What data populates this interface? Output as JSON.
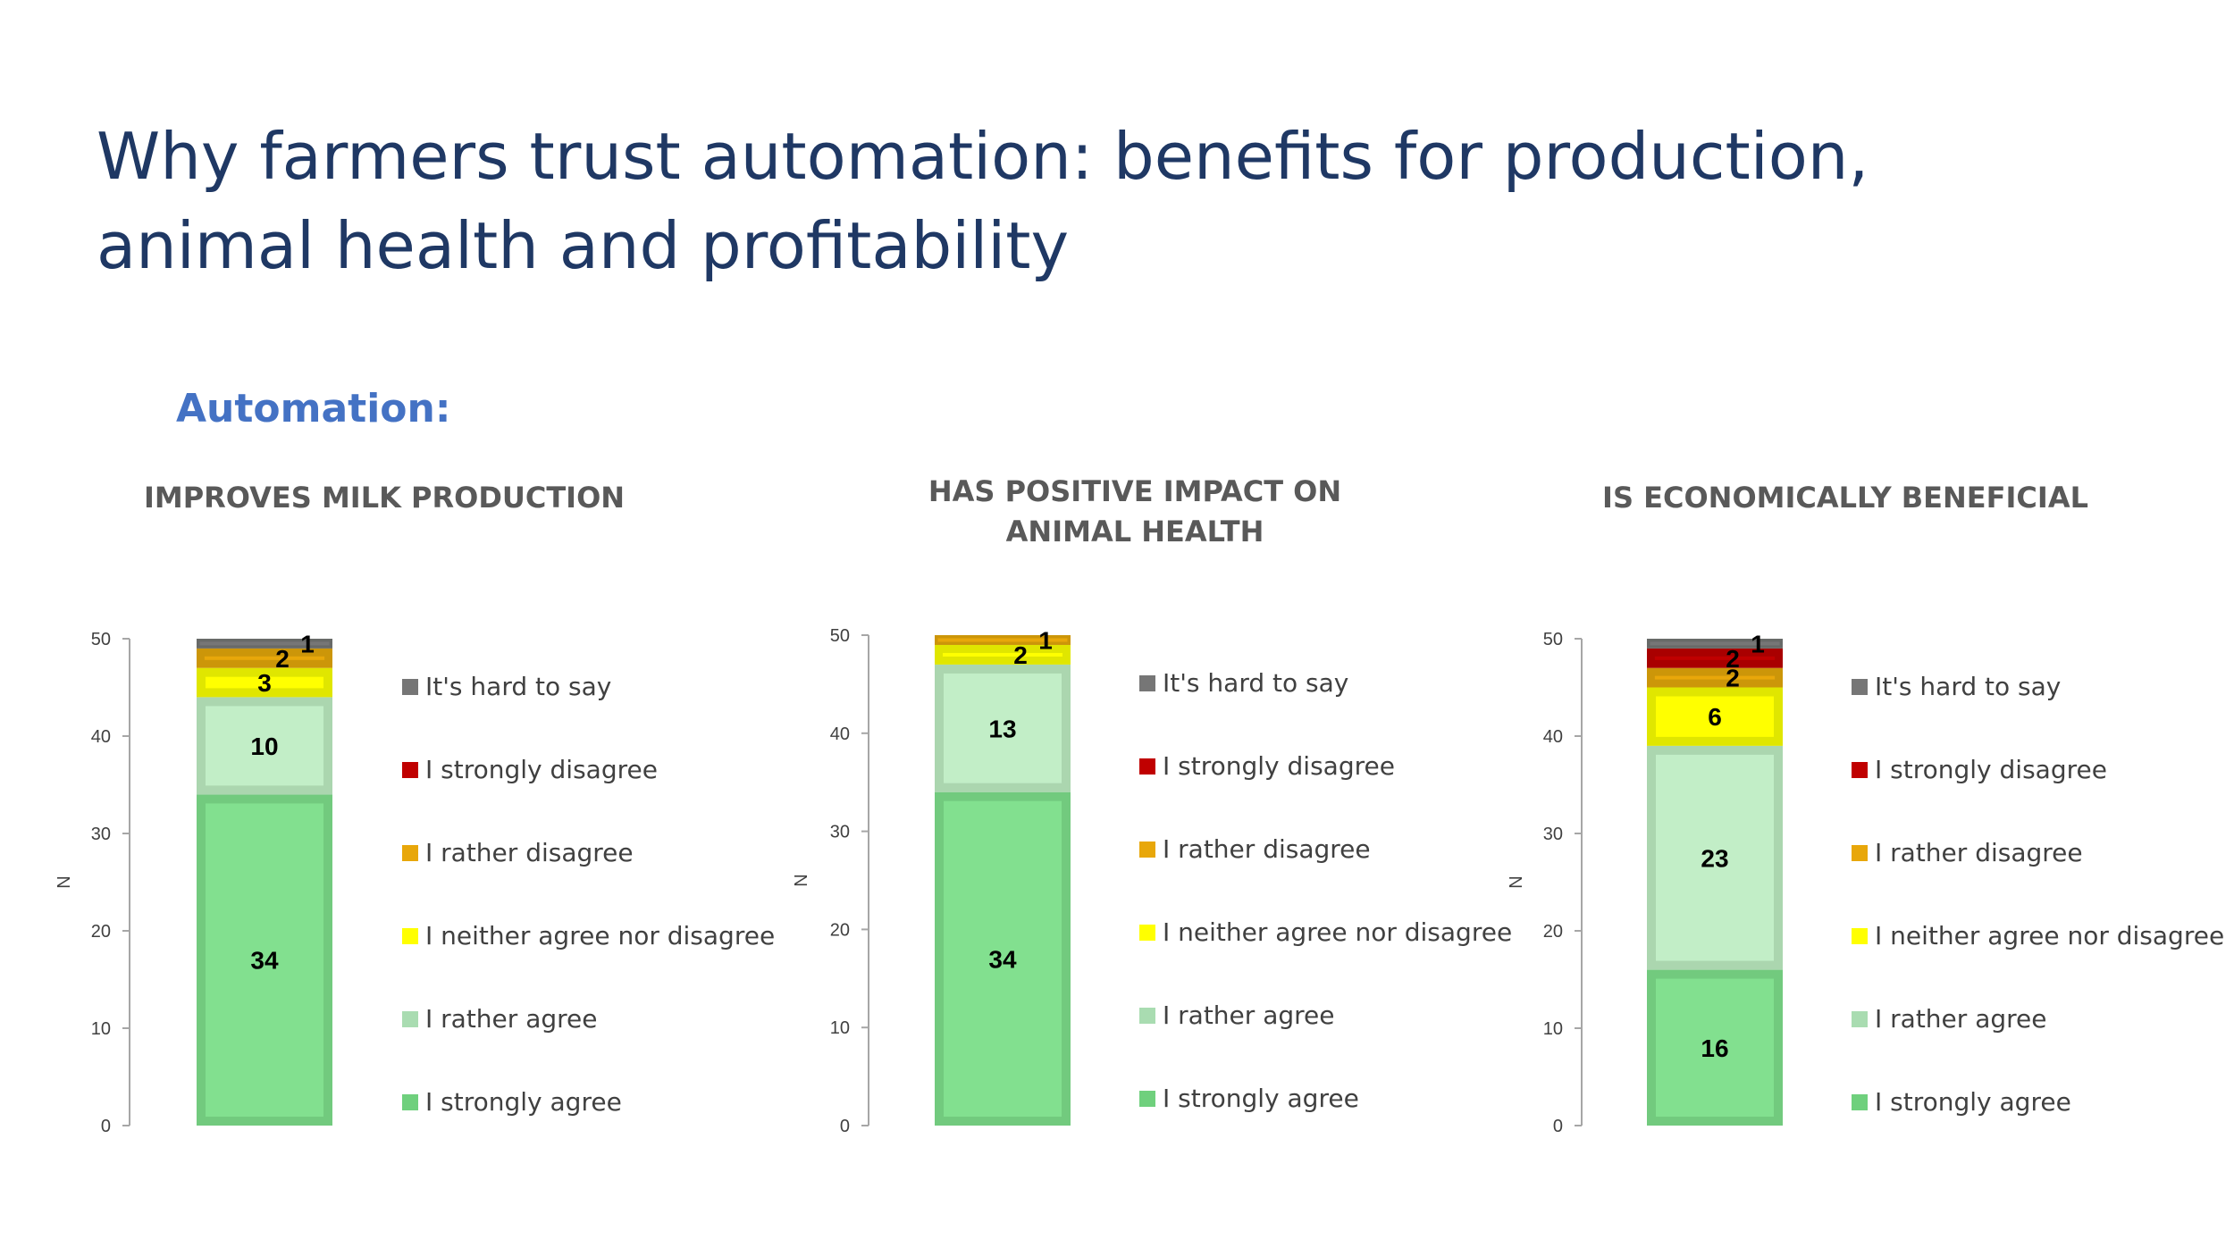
{
  "title": "Why farmers trust automation: benefits for production, animal health and profitability",
  "section_label": "Automation:",
  "colors": {
    "title": "#1f3864",
    "section_label": "#4472c4",
    "hard_to_say": "#767676",
    "strongly_disagree": "#c00000",
    "rather_disagree": "#e8a70a",
    "neither": "#ffff00",
    "rather_agree": "#c2eec7",
    "strongly_agree": "#82e08f"
  },
  "legend": [
    {
      "label": "It's hard to say",
      "color_key": "hard_to_say"
    },
    {
      "label": "I strongly disagree",
      "color_key": "strongly_disagree"
    },
    {
      "label": "I rather disagree",
      "color_key": "rather_disagree"
    },
    {
      "label": "I neither agree nor disagree",
      "color_key": "neither"
    },
    {
      "label": "I rather agree",
      "color_key": "rather_agree"
    },
    {
      "label": "I strongly agree",
      "color_key": "strongly_agree"
    }
  ],
  "chart_data": [
    {
      "type": "bar",
      "stacked": true,
      "title": "IMPROVES MILK PRODUCTION",
      "ylabel": "N",
      "ylim": [
        0,
        50
      ],
      "yticks": [
        0,
        10,
        20,
        30,
        40,
        50
      ],
      "series": [
        {
          "name": "I strongly agree",
          "values": [
            34
          ],
          "color_key": "strongly_agree"
        },
        {
          "name": "I rather agree",
          "values": [
            10
          ],
          "color_key": "rather_agree"
        },
        {
          "name": "I neither agree nor disagree",
          "values": [
            3
          ],
          "color_key": "neither"
        },
        {
          "name": "I rather disagree",
          "values": [
            2
          ],
          "color_key": "rather_disagree"
        },
        {
          "name": "I strongly disagree",
          "values": [
            0
          ],
          "color_key": "strongly_disagree"
        },
        {
          "name": "It's hard to say",
          "values": [
            1
          ],
          "color_key": "hard_to_say"
        }
      ]
    },
    {
      "type": "bar",
      "stacked": true,
      "title": "HAS POSITIVE IMPACT ON ANIMAL HEALTH",
      "ylabel": "N",
      "ylim": [
        0,
        50
      ],
      "yticks": [
        0,
        10,
        20,
        30,
        40,
        50
      ],
      "series": [
        {
          "name": "I strongly agree",
          "values": [
            34
          ],
          "color_key": "strongly_agree"
        },
        {
          "name": "I rather agree",
          "values": [
            13
          ],
          "color_key": "rather_agree"
        },
        {
          "name": "I neither agree nor disagree",
          "values": [
            2
          ],
          "color_key": "neither"
        },
        {
          "name": "I rather disagree",
          "values": [
            1
          ],
          "color_key": "rather_disagree"
        },
        {
          "name": "I strongly disagree",
          "values": [
            0
          ],
          "color_key": "strongly_disagree"
        },
        {
          "name": "It's hard to say",
          "values": [
            0
          ],
          "color_key": "hard_to_say"
        }
      ]
    },
    {
      "type": "bar",
      "stacked": true,
      "title": "IS ECONOMICALLY BENEFICIAL",
      "ylabel": "N",
      "ylim": [
        0,
        50
      ],
      "yticks": [
        0,
        10,
        20,
        30,
        40,
        50
      ],
      "series": [
        {
          "name": "I strongly agree",
          "values": [
            16
          ],
          "color_key": "strongly_agree"
        },
        {
          "name": "I rather agree",
          "values": [
            23
          ],
          "color_key": "rather_agree"
        },
        {
          "name": "I neither agree nor disagree",
          "values": [
            6
          ],
          "color_key": "neither"
        },
        {
          "name": "I rather disagree",
          "values": [
            2
          ],
          "color_key": "rather_disagree"
        },
        {
          "name": "I strongly disagree",
          "values": [
            2
          ],
          "color_key": "strongly_disagree"
        },
        {
          "name": "It's hard to say",
          "values": [
            1
          ],
          "color_key": "hard_to_say"
        }
      ]
    }
  ]
}
